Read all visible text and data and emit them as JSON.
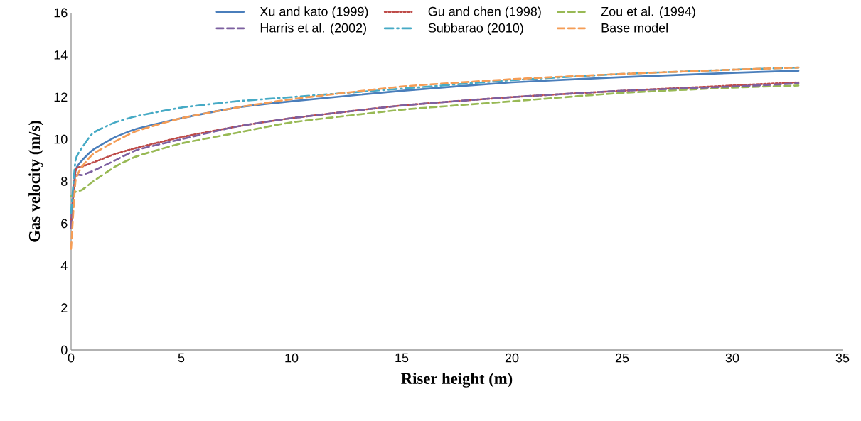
{
  "chart_data": {
    "type": "line",
    "xlabel": "Riser height (m)",
    "ylabel": "Gas velocity (m/s)",
    "xlim": [
      0,
      35
    ],
    "ylim": [
      0,
      16
    ],
    "xticks": [
      0,
      5,
      10,
      15,
      20,
      25,
      30,
      35
    ],
    "yticks": [
      0,
      2,
      4,
      6,
      8,
      10,
      12,
      14,
      16
    ],
    "grid": false,
    "legend": "top",
    "x": [
      0,
      0.2,
      0.5,
      1,
      2,
      3,
      5,
      7.5,
      10,
      15,
      20,
      25,
      30,
      33
    ],
    "series": [
      {
        "name": "Xu and kato (1999)",
        "color": "#4a7ebb",
        "line_style": "solid",
        "values": [
          6.0,
          8.5,
          9.0,
          9.5,
          10.1,
          10.5,
          11.0,
          11.5,
          11.8,
          12.3,
          12.7,
          12.95,
          13.15,
          13.25
        ]
      },
      {
        "name": "Gu and chen (1998)",
        "color": "#be4b48",
        "line_style": "dotted",
        "values": [
          6.0,
          8.5,
          8.7,
          8.9,
          9.3,
          9.6,
          10.1,
          10.6,
          11.0,
          11.6,
          12.0,
          12.3,
          12.55,
          12.7
        ]
      },
      {
        "name": "Zou et al. (1994)",
        "color": "#98b954",
        "line_style": "dashed",
        "values": [
          7.3,
          7.5,
          7.6,
          8.0,
          8.7,
          9.2,
          9.8,
          10.3,
          10.8,
          11.4,
          11.8,
          12.2,
          12.45,
          12.55
        ]
      },
      {
        "name": "Harris et al. (2002)",
        "color": "#7d60a0",
        "line_style": "dashed",
        "values": [
          5.8,
          8.2,
          8.3,
          8.5,
          9.0,
          9.5,
          10.0,
          10.6,
          11.0,
          11.6,
          12.0,
          12.3,
          12.5,
          12.65
        ]
      },
      {
        "name": "Subbarao (2010)",
        "color": "#46aac5",
        "line_style": "dashdot",
        "values": [
          6.5,
          9.0,
          9.6,
          10.3,
          10.8,
          11.1,
          11.5,
          11.8,
          12.0,
          12.4,
          12.8,
          13.1,
          13.3,
          13.4
        ]
      },
      {
        "name": "Base model",
        "color": "#f59d56",
        "line_style": "dashed",
        "values": [
          4.8,
          8.0,
          8.7,
          9.3,
          9.9,
          10.4,
          11.0,
          11.5,
          11.9,
          12.5,
          12.85,
          13.1,
          13.3,
          13.4
        ]
      }
    ]
  }
}
